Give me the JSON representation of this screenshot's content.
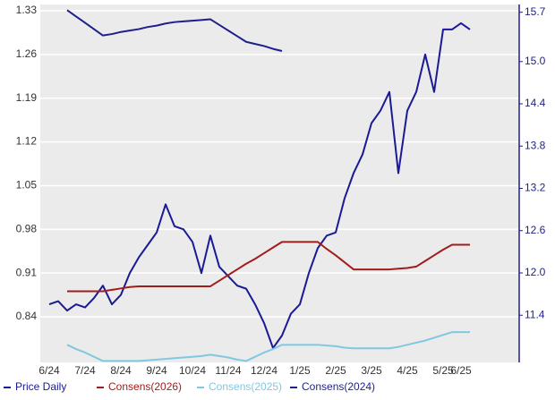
{
  "chart_data": {
    "type": "line",
    "categories": [
      "6/24",
      null,
      null,
      null,
      "7/24",
      null,
      null,
      null,
      "8/24",
      null,
      null,
      null,
      "9/24",
      null,
      null,
      null,
      "10/24",
      null,
      null,
      null,
      "11/24",
      null,
      null,
      null,
      "12/24",
      null,
      null,
      null,
      "1/25",
      null,
      null,
      null,
      "2/25",
      null,
      null,
      null,
      "3/25",
      null,
      null,
      null,
      "4/25",
      null,
      null,
      null,
      "5/25",
      null,
      "6/25",
      null
    ],
    "series": [
      {
        "name": "Price Daily",
        "color": "#1a1a96",
        "axis": "y",
        "values": [
          0.86,
          0.865,
          0.85,
          0.86,
          0.855,
          0.87,
          0.89,
          0.86,
          0.875,
          0.91,
          0.935,
          0.955,
          0.975,
          1.02,
          0.985,
          0.98,
          0.96,
          0.91,
          0.97,
          0.92,
          0.905,
          0.89,
          0.885,
          0.86,
          0.83,
          0.79,
          0.81,
          0.845,
          0.86,
          0.91,
          0.95,
          0.97,
          0.975,
          1.03,
          1.07,
          1.1,
          1.15,
          1.17,
          1.2,
          1.07,
          1.17,
          1.2,
          1.26,
          1.2,
          1.3,
          1.3,
          1.31,
          1.3
        ]
      },
      {
        "name": "Consens(2026)",
        "color": "#a31c1c",
        "axis": "y2",
        "values": [
          null,
          null,
          11.74,
          11.74,
          11.74,
          11.74,
          11.74,
          11.76,
          11.78,
          11.8,
          11.81,
          11.81,
          11.81,
          11.81,
          11.81,
          11.81,
          11.81,
          11.81,
          11.81,
          11.89,
          11.97,
          12.05,
          12.13,
          12.2,
          12.28,
          12.36,
          12.44,
          12.44,
          12.44,
          12.44,
          12.44,
          12.34,
          12.25,
          12.15,
          12.05,
          12.05,
          12.05,
          12.05,
          12.05,
          12.06,
          12.07,
          12.09,
          12.17,
          12.25,
          12.33,
          12.4,
          12.4,
          12.4
        ]
      },
      {
        "name": "Consens(2025)",
        "color": "#80c8e2",
        "axis": "y2",
        "values": [
          null,
          null,
          10.98,
          10.92,
          10.87,
          10.81,
          10.75,
          10.75,
          10.75,
          10.75,
          10.75,
          10.76,
          10.77,
          10.78,
          10.79,
          10.8,
          10.81,
          10.82,
          10.84,
          10.82,
          10.8,
          10.77,
          10.75,
          10.81,
          10.87,
          10.92,
          10.98,
          10.98,
          10.98,
          10.98,
          10.98,
          10.97,
          10.96,
          10.94,
          10.93,
          10.93,
          10.93,
          10.93,
          10.93,
          10.95,
          10.98,
          11.01,
          11.04,
          11.08,
          11.12,
          11.16,
          11.16,
          11.16
        ]
      },
      {
        "name": "Consens(2024)",
        "color": "#1f1f8c",
        "axis": "y2",
        "values": [
          null,
          null,
          15.73,
          15.64,
          15.55,
          15.46,
          15.37,
          15.39,
          15.42,
          15.44,
          15.46,
          15.49,
          15.51,
          15.54,
          15.56,
          15.57,
          15.58,
          15.59,
          15.6,
          15.52,
          15.44,
          15.36,
          15.28,
          15.25,
          15.22,
          15.18,
          15.15,
          null,
          null,
          null,
          null,
          null,
          null,
          null,
          null,
          null,
          null,
          null,
          null,
          null,
          null,
          null,
          null,
          null,
          null,
          null,
          null,
          null
        ]
      }
    ],
    "ylim": [
      0.767,
      1.34
    ],
    "yticks": [
      0.84,
      0.91,
      0.98,
      1.05,
      1.12,
      1.19,
      1.26,
      1.33
    ],
    "y2lim": [
      10.73,
      15.81
    ],
    "y2ticks": [
      11.4,
      {
        "value": 12,
        "label": "12.0"
      },
      12.6,
      13.2,
      13.8,
      14.4,
      {
        "value": 15,
        "label": "15.0"
      },
      15.7
    ],
    "grid": true
  }
}
